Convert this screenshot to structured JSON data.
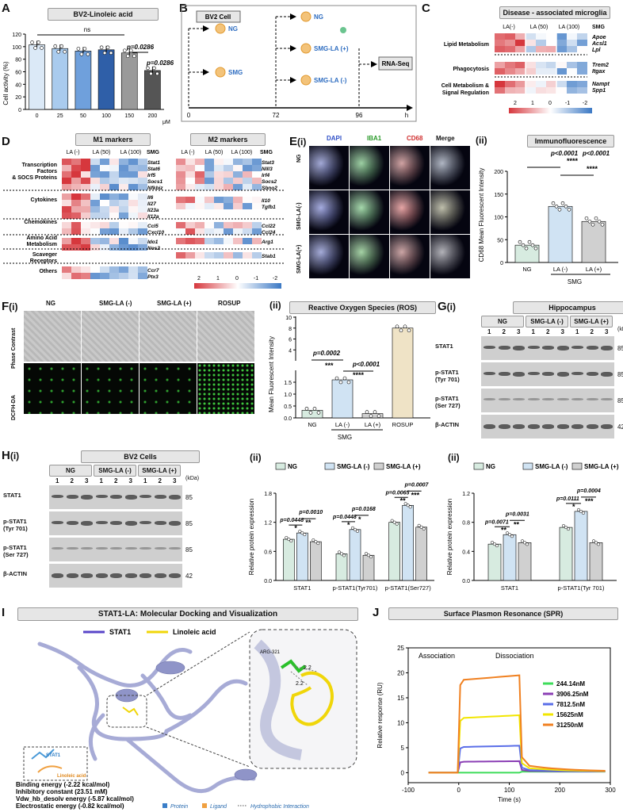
{
  "panelA": {
    "letter": "A",
    "title": "BV2-Linoleic acid",
    "ylabel": "Cell activity (%)",
    "ns": "ns",
    "p1": "p=0.0286",
    "p2": "p=0.0286",
    "unit": "μM"
  },
  "panelB": {
    "letter": "B",
    "box1": "BV2 Cell",
    "ng1": "NG",
    "smg": "SMG",
    "ng2": "NG",
    "smgla_pos": "SMG-LA (+)",
    "smgla_neg": "SMG-LA (-)",
    "rnaseq": "RNA-Seq",
    "t0": "0",
    "t72": "72",
    "t96": "96",
    "th": "h"
  },
  "panelC": {
    "letter": "C",
    "title": "Disease - associated microglia",
    "cols": [
      "LA(-)",
      "LA (50)",
      "LA (100)",
      "SMG"
    ],
    "rows": [
      "Lipid Metabolism",
      "Phagocytosis",
      "Cell Metabolism &",
      "Signal Regulation"
    ],
    "genes1": [
      "Apoe",
      "Acsl1",
      "Lpl"
    ],
    "genes2": [
      "Trem2",
      "Itgax"
    ],
    "genes3": [
      "Nampt",
      "Spp1"
    ],
    "scale": [
      "2",
      "1",
      "0",
      "-1",
      "-2"
    ]
  },
  "panelD": {
    "letter": "D",
    "m1": "M1 markers",
    "m2": "M2 markers",
    "cols": [
      "LA (-)",
      "LA (50)",
      "LA (100)",
      "SMG",
      "LA (-)",
      "LA (50)",
      "LA (100)",
      "SMG"
    ],
    "cats": [
      "Transcription",
      "Factors",
      "& SOCS Proteins",
      "Cytokines",
      "Chemokines",
      "Amino Acid",
      "Metabolism",
      "Scaveger",
      "Receptors",
      "Others"
    ],
    "m1genes": [
      "Stat1",
      "Stat6",
      "Irf5",
      "Socs1",
      "Nfkbiz",
      "Il6",
      "Il27",
      "Il23a",
      "Il12a",
      "Ccl5",
      "Cxcl10",
      "Ido1",
      "Nos2",
      "Ccr7",
      "Ptx3"
    ],
    "m2genes": [
      "Stat3",
      "Nlll3",
      "Irf4",
      "Socs2",
      "Sbno2",
      "Il10",
      "Tgfb1",
      "Ccl22",
      "Ccl24",
      "Arg1",
      "Stab1"
    ],
    "scale": [
      "2",
      "1",
      "0",
      "-1",
      "-2"
    ]
  },
  "panelE": {
    "letter": "E",
    "sub_i": "(i)",
    "sub_ii": "(ii)",
    "channels": [
      "DAPI",
      "IBA1",
      "CD68",
      "Merge"
    ],
    "rows": [
      "NG",
      "SMG-LA(-)",
      "SMG-LA(+)"
    ],
    "title": "Immunofluorescence",
    "ylabel": "CD68 Mean Fluorescent Intensity",
    "p1": "p<0.0001",
    "p2": "p<0.0001",
    "stars": "****",
    "smg": "SMG"
  },
  "panelF": {
    "letter": "F",
    "sub_i": "(i)",
    "sub_ii": "(ii)",
    "cols": [
      "NG",
      "SMG-LA (-)",
      "SMG-LA (+)",
      "ROSUP"
    ],
    "rows": [
      "Phase Contrast",
      "DCFH-DA"
    ],
    "title": "Reactive Oxygen Species (ROS)",
    "ylabel": "Mean Fluorescent Intensity",
    "p1": "p=0.0002",
    "p2": "p<0.0001",
    "s1": "***",
    "s2": "****",
    "smg": "SMG"
  },
  "panelG": {
    "letter": "G",
    "sub": "(i)",
    "title": "Hippocampus",
    "groups": [
      "NG",
      "SMG-LA (-)",
      "SMG-LA (+)"
    ],
    "lanes": [
      "1",
      "2",
      "3",
      "1",
      "2",
      "3",
      "1",
      "2",
      "3"
    ],
    "kda": "(kDa)",
    "proteins": [
      "STAT1",
      "p-STAT1",
      "(Tyr 701)",
      "p-STAT1",
      "(Ser 727)",
      "β-ACTIN"
    ],
    "sizes": [
      "85",
      "85",
      "85",
      "42"
    ]
  },
  "panelH": {
    "letter": "H",
    "sub": "(i)",
    "title": "BV2 Cells",
    "groups": [
      "NG",
      "SMG-LA (-)",
      "SMG-LA (+)"
    ],
    "lanes": [
      "1",
      "2",
      "3",
      "1",
      "2",
      "3",
      "1",
      "2",
      "3"
    ],
    "kda": "(kDa)",
    "proteins": [
      "STAT1",
      "p-STAT1",
      "(Tyr 701)",
      "p-STAT1",
      "(Ser 727)",
      "β-ACTIN"
    ],
    "sizes": [
      "85",
      "85",
      "85",
      "42"
    ],
    "sub2": "(ii)",
    "sub3": "(ii)",
    "legend": [
      "NG",
      "SMG-LA (-)",
      "SMG-LA (+)"
    ],
    "ylabel": "Relative protein expression"
  },
  "panelI": {
    "letter": "I",
    "title": "STAT1-LA: Molecular Docking and Visualization",
    "legend1": "STAT1",
    "legend2": "Linoleic acid",
    "residue": "ARG-321",
    "dist1": "2.2",
    "dist2": "2.2",
    "inset1": "STAT1",
    "inset2": "Linoleic acid",
    "info": [
      "Binding energy (-2.22 kcal/mol)",
      "Inhibitory constant (23.51 mM)",
      "Vdw_hb_desolv energy (-5.87 kcal/mol)",
      "Electrostatic energy (-0.82 kcal/mol)"
    ],
    "key": [
      "Protein",
      "Ligand",
      "Hydrophobic Interaction"
    ]
  },
  "panelJ": {
    "letter": "J",
    "title": "Surface Plasmon Resonance (SPR)",
    "assoc": "Association",
    "dissoc": "Dissociation"
  },
  "chart_data": [
    {
      "id": "A",
      "type": "bar",
      "categories": [
        "0",
        "25",
        "50",
        "100",
        "150",
        "200"
      ],
      "values": [
        103,
        97,
        93,
        95,
        90,
        62
      ],
      "ylabel": "Cell activity (%)",
      "ylim": [
        0,
        120
      ],
      "yticks": [
        0,
        20,
        40,
        60,
        80,
        100,
        120
      ],
      "colors": [
        "#dbe9f7",
        "#a9cbee",
        "#6fa0dc",
        "#2f5fa8",
        "#9a9a9a",
        "#555555"
      ]
    },
    {
      "id": "E_ii",
      "type": "bar",
      "categories": [
        "NG",
        "LA (-)",
        "LA (+)"
      ],
      "values": [
        38,
        123,
        90
      ],
      "ylim": [
        0,
        200
      ],
      "yticks": [
        0,
        50,
        100,
        150,
        200
      ],
      "colors": [
        "#d7ebe0",
        "#d0e3f3",
        "#d0d0d0"
      ]
    },
    {
      "id": "F_ii",
      "type": "bar",
      "categories": [
        "NG",
        "LA (-)",
        "LA (+)",
        "ROSUP"
      ],
      "values": [
        0.32,
        1.6,
        0.18,
        8.0
      ],
      "yticks": [
        "0.0",
        "0.5",
        "1.0",
        "1.5",
        "2",
        "4",
        "6",
        "8",
        "10"
      ],
      "colors": [
        "#d7ebe0",
        "#d0e3f3",
        "#d0d0d0",
        "#efe3c6"
      ]
    },
    {
      "id": "H_ii",
      "type": "bar",
      "categories": [
        "STAT1",
        "p-STAT1(Tyr701)",
        "p-STAT1(Ser727)"
      ],
      "series": [
        {
          "name": "NG",
          "values": [
            0.85,
            0.55,
            1.2
          ],
          "color": "#d7ebe0"
        },
        {
          "name": "SMG-LA (-)",
          "values": [
            0.98,
            1.05,
            1.55
          ],
          "color": "#d0e3f3"
        },
        {
          "name": "SMG-LA (+)",
          "values": [
            0.8,
            0.52,
            1.1
          ],
          "color": "#d0d0d0"
        }
      ],
      "ylim": [
        0,
        1.8
      ],
      "yticks": [
        "0.0",
        "0.6",
        "1.2",
        "1.8"
      ],
      "pvals": [
        "p=0.0448",
        "p=0.0010",
        "p=0.0448",
        "p=0.0168",
        "p=0.0065",
        "p=0.0007"
      ],
      "stars": [
        "*",
        "**",
        "*",
        "*",
        "**",
        "***"
      ]
    },
    {
      "id": "G_ii",
      "type": "bar",
      "categories": [
        "STAT1",
        "p-STAT1(Tyr 701)"
      ],
      "series": [
        {
          "name": "NG",
          "values": [
            0.5,
            0.73
          ],
          "color": "#d7ebe0"
        },
        {
          "name": "SMG-LA (-)",
          "values": [
            0.63,
            0.95
          ],
          "color": "#d0e3f3"
        },
        {
          "name": "SMG-LA (+)",
          "values": [
            0.52,
            0.52
          ],
          "color": "#d0d0d0"
        }
      ],
      "ylim": [
        0,
        1.2
      ],
      "yticks": [
        "0.0",
        "0.4",
        "0.8",
        "1.2"
      ],
      "pvals": [
        "p=0.0071",
        "p=0.0031",
        "p=0.0111",
        "p=0.0004"
      ],
      "stars": [
        "**",
        "**",
        "*",
        "***"
      ]
    },
    {
      "id": "J",
      "type": "line",
      "xlabel": "Time (s)",
      "ylabel": "Relative response (RU)",
      "xlim": [
        -100,
        300
      ],
      "ylim": [
        -2,
        25
      ],
      "xticks": [
        -100,
        0,
        100,
        200,
        300
      ],
      "yticks": [
        0,
        5,
        10,
        15,
        20,
        25
      ],
      "series": [
        {
          "name": "244.14nM",
          "plateau": 0,
          "color": "#3ddc5a"
        },
        {
          "name": "3906.25nM",
          "plateau": 2.3,
          "color": "#8b3fb5"
        },
        {
          "name": "7812.5nM",
          "plateau": 5.4,
          "color": "#5a6ee8"
        },
        {
          "name": "15625nM",
          "plateau": 11.5,
          "color": "#f2e600"
        },
        {
          "name": "31250nM",
          "plateau": 19.5,
          "color": "#f08020"
        }
      ]
    }
  ]
}
